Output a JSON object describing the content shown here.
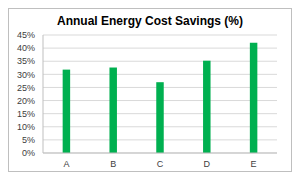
{
  "chart_data": {
    "type": "bar",
    "title": "Annual Energy Cost Savings (%)",
    "categories": [
      "A",
      "B",
      "C",
      "D",
      "E"
    ],
    "values": [
      31.8,
      32.6,
      27.0,
      35.2,
      42.0
    ],
    "color": "#00b050",
    "ylim": [
      0,
      45
    ],
    "yticks": [
      {
        "value": 0,
        "label": "0%"
      },
      {
        "value": 5,
        "label": "5%"
      },
      {
        "value": 10,
        "label": "10%"
      },
      {
        "value": 15,
        "label": "15%"
      },
      {
        "value": 20,
        "label": "20%"
      },
      {
        "value": 25,
        "label": "25%"
      },
      {
        "value": 30,
        "label": "30%"
      },
      {
        "value": 35,
        "label": "35%"
      },
      {
        "value": 40,
        "label": "40%"
      },
      {
        "value": 45,
        "label": "45%"
      }
    ],
    "grid": true
  }
}
